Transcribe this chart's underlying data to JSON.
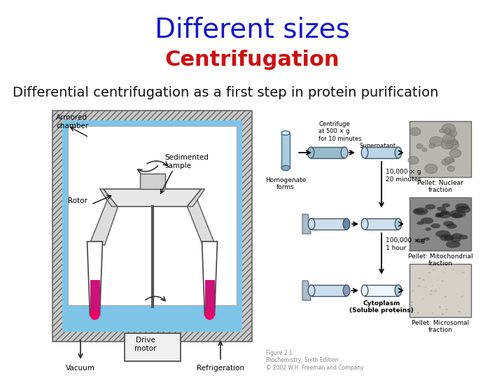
{
  "title1": "Different sizes",
  "title1_color": "#1515CC",
  "title1_fontsize": 28,
  "title1_weight": "normal",
  "title2": "Centrifugation",
  "title2_color": "#CC1111",
  "title2_fontsize": 22,
  "title2_weight": "bold",
  "subtitle": "Differential centrifugation as a first step in protein purification",
  "subtitle_color": "#111111",
  "subtitle_fontsize": 14,
  "subtitle_weight": "normal",
  "background_color": "#FFFFFF"
}
